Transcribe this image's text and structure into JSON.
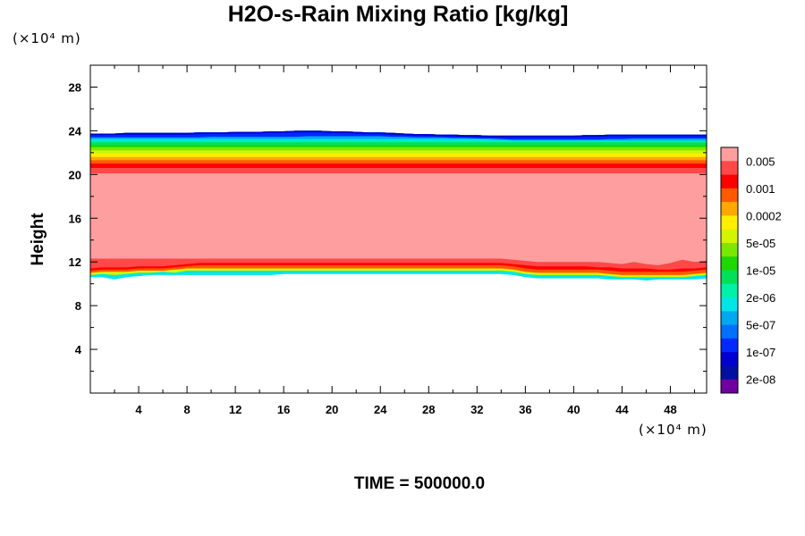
{
  "chart_data": {
    "type": "heatmap",
    "title": "H2O-s-Rain Mixing Ratio [kg/kg]",
    "ylabel": "Height",
    "x_unit": "(×10⁴ m)",
    "y_unit": "(×10⁴ m)",
    "footer": "TIME = 500000.0",
    "xlim": [
      0,
      51
    ],
    "ylim": [
      0,
      30
    ],
    "x_ticks": [
      4,
      8,
      12,
      16,
      20,
      24,
      28,
      32,
      36,
      40,
      44,
      48
    ],
    "y_ticks": [
      4,
      8,
      12,
      16,
      20,
      24,
      28
    ],
    "colorbar": {
      "labels": [
        "0.005",
        "0.001",
        "0.0002",
        "5e-05",
        "1e-05",
        "2e-06",
        "5e-07",
        "1e-07",
        "2e-08"
      ],
      "colors": [
        "#ff9e9e",
        "#ff4848",
        "#ff0000",
        "#ff5a00",
        "#ffa800",
        "#ffee00",
        "#d4f500",
        "#7ae800",
        "#1ed800",
        "#00e05a",
        "#00f0a8",
        "#00e6e6",
        "#00a8f0",
        "#0070ff",
        "#0028ff",
        "#0000d0",
        "#0010a0",
        "#7000a0"
      ]
    },
    "layers": [
      {
        "base": [
          10.6,
          10.6,
          10.4,
          10.6,
          10.7,
          10.8,
          10.8,
          10.8,
          10.8,
          10.8,
          10.8,
          10.8,
          10.8,
          10.8,
          10.8,
          10.8,
          10.9,
          10.9,
          10.9,
          10.9,
          10.9,
          10.9,
          10.9,
          10.9,
          10.9,
          10.9,
          10.9,
          10.9,
          10.9,
          10.9,
          10.9,
          10.9,
          10.9,
          10.9,
          10.9,
          10.8,
          10.6,
          10.5,
          10.5,
          10.5,
          10.5,
          10.5,
          10.5,
          10.4,
          10.4,
          10.4,
          10.3,
          10.4,
          10.4,
          10.4,
          10.4,
          10.5
        ],
        "color": "#00e6e6"
      },
      {
        "base": [
          10.8,
          10.9,
          10.8,
          10.9,
          11.0,
          11.0,
          11.1,
          11.0,
          11.2,
          11.2,
          11.2,
          11.2,
          11.2,
          11.2,
          11.2,
          11.2,
          11.2,
          11.2,
          11.2,
          11.2,
          11.2,
          11.2,
          11.2,
          11.2,
          11.2,
          11.2,
          11.2,
          11.2,
          11.2,
          11.2,
          11.2,
          11.2,
          11.2,
          11.2,
          11.2,
          11.1,
          10.9,
          10.8,
          10.8,
          10.8,
          10.8,
          10.8,
          10.8,
          10.7,
          10.6,
          10.6,
          10.6,
          10.6,
          10.6,
          10.6,
          10.7,
          10.8
        ],
        "color": "#d4f500"
      },
      {
        "base": [
          11.0,
          11.1,
          11.1,
          11.1,
          11.2,
          11.2,
          11.2,
          11.3,
          11.4,
          11.4,
          11.4,
          11.4,
          11.4,
          11.4,
          11.4,
          11.4,
          11.4,
          11.4,
          11.4,
          11.4,
          11.4,
          11.4,
          11.4,
          11.4,
          11.4,
          11.4,
          11.4,
          11.4,
          11.4,
          11.4,
          11.4,
          11.4,
          11.4,
          11.4,
          11.4,
          11.3,
          11.1,
          11.0,
          11.0,
          11.0,
          11.0,
          11.0,
          11.0,
          10.9,
          10.8,
          10.8,
          10.8,
          10.8,
          10.8,
          10.8,
          10.9,
          11.0
        ],
        "color": "#ff5a00"
      },
      {
        "base": [
          11.2,
          11.3,
          11.3,
          11.3,
          11.4,
          11.4,
          11.4,
          11.5,
          11.6,
          11.7,
          11.7,
          11.7,
          11.7,
          11.7,
          11.7,
          11.7,
          11.7,
          11.7,
          11.7,
          11.7,
          11.7,
          11.7,
          11.7,
          11.7,
          11.7,
          11.7,
          11.7,
          11.7,
          11.7,
          11.7,
          11.7,
          11.7,
          11.7,
          11.7,
          11.7,
          11.6,
          11.4,
          11.3,
          11.3,
          11.3,
          11.3,
          11.3,
          11.3,
          11.2,
          11.1,
          11.1,
          11.1,
          11.1,
          11.1,
          11.1,
          11.2,
          11.3
        ],
        "color": "#ff0000"
      },
      {
        "base": [
          11.4,
          11.5,
          11.5,
          11.5,
          11.6,
          11.6,
          11.6,
          11.7,
          11.8,
          11.9,
          11.9,
          11.9,
          11.9,
          11.9,
          11.9,
          11.9,
          11.9,
          11.9,
          11.9,
          11.9,
          11.9,
          11.9,
          11.9,
          11.9,
          11.9,
          11.9,
          11.9,
          11.9,
          11.9,
          11.9,
          11.9,
          11.9,
          11.9,
          11.9,
          11.9,
          11.8,
          11.7,
          11.6,
          11.6,
          11.6,
          11.6,
          11.6,
          11.5,
          11.5,
          11.4,
          11.4,
          11.4,
          11.3,
          11.3,
          11.4,
          11.4,
          11.5
        ],
        "color": "#ff4848"
      },
      {
        "base": [
          12.3,
          12.3,
          12.3,
          12.3,
          12.3,
          12.3,
          12.3,
          12.3,
          12.3,
          12.3,
          12.3,
          12.3,
          12.3,
          12.3,
          12.3,
          12.3,
          12.3,
          12.3,
          12.3,
          12.3,
          12.3,
          12.3,
          12.3,
          12.3,
          12.3,
          12.3,
          12.3,
          12.3,
          12.3,
          12.3,
          12.3,
          12.3,
          12.3,
          12.3,
          12.3,
          12.2,
          12.1,
          12.0,
          12.0,
          12.0,
          12.0,
          12.0,
          12.0,
          11.9,
          11.8,
          12.0,
          11.8,
          11.7,
          11.9,
          12.2,
          12.0,
          12.1
        ],
        "color": "#ff9e9e"
      },
      {
        "base": [
          20.1,
          20.1,
          20.1,
          20.1,
          20.1,
          20.1,
          20.1,
          20.1,
          20.1,
          20.1,
          20.1,
          20.1,
          20.1,
          20.1,
          20.1,
          20.1,
          20.1,
          20.1,
          20.1,
          20.1,
          20.1,
          20.1,
          20.1,
          20.1,
          20.1,
          20.1,
          20.1,
          20.1,
          20.1,
          20.1,
          20.1,
          20.1,
          20.1,
          20.1,
          20.1,
          20.1,
          20.1,
          20.1,
          20.1,
          20.1,
          20.1,
          20.1,
          20.1,
          20.1,
          20.1,
          20.1,
          20.1,
          20.1,
          20.1,
          20.1,
          20.1,
          20.1
        ],
        "color": "#ff4848"
      },
      {
        "base": [
          20.6,
          20.6,
          20.6,
          20.6,
          20.6,
          20.6,
          20.6,
          20.6,
          20.6,
          20.6,
          20.6,
          20.6,
          20.6,
          20.6,
          20.6,
          20.6,
          20.6,
          20.6,
          20.6,
          20.6,
          20.6,
          20.6,
          20.6,
          20.6,
          20.6,
          20.6,
          20.6,
          20.6,
          20.6,
          20.6,
          20.6,
          20.6,
          20.6,
          20.6,
          20.6,
          20.6,
          20.6,
          20.6,
          20.6,
          20.6,
          20.6,
          20.6,
          20.6,
          20.6,
          20.6,
          20.6,
          20.6,
          20.6,
          20.6,
          20.6,
          20.6,
          20.6
        ],
        "color": "#ff0000"
      },
      {
        "base": [
          21.0,
          21.0,
          21.0,
          21.0,
          21.0,
          21.0,
          21.0,
          21.0,
          21.0,
          21.0,
          21.0,
          21.0,
          21.0,
          21.0,
          21.0,
          21.0,
          21.0,
          21.0,
          21.0,
          21.0,
          21.0,
          21.0,
          21.0,
          21.0,
          21.0,
          21.0,
          21.0,
          21.0,
          21.0,
          21.0,
          21.0,
          21.0,
          21.0,
          21.0,
          21.0,
          21.0,
          21.0,
          21.0,
          21.0,
          21.0,
          21.0,
          21.0,
          21.0,
          21.0,
          21.0,
          21.0,
          21.0,
          21.0,
          21.0,
          21.0,
          21.0,
          21.0
        ],
        "color": "#ff5a00"
      },
      {
        "base": [
          21.3,
          21.3,
          21.3,
          21.3,
          21.3,
          21.3,
          21.3,
          21.3,
          21.3,
          21.3,
          21.3,
          21.3,
          21.3,
          21.3,
          21.3,
          21.3,
          21.3,
          21.3,
          21.3,
          21.3,
          21.3,
          21.3,
          21.3,
          21.3,
          21.3,
          21.3,
          21.3,
          21.3,
          21.3,
          21.3,
          21.3,
          21.3,
          21.3,
          21.3,
          21.3,
          21.3,
          21.3,
          21.3,
          21.3,
          21.3,
          21.3,
          21.3,
          21.3,
          21.3,
          21.3,
          21.3,
          21.3,
          21.3,
          21.3,
          21.3,
          21.3,
          21.3
        ],
        "color": "#ffa800"
      },
      {
        "base": [
          21.6,
          21.6,
          21.6,
          21.6,
          21.6,
          21.6,
          21.6,
          21.6,
          21.6,
          21.6,
          21.6,
          21.6,
          21.6,
          21.6,
          21.6,
          21.6,
          21.6,
          21.6,
          21.6,
          21.6,
          21.6,
          21.6,
          21.6,
          21.6,
          21.6,
          21.6,
          21.6,
          21.6,
          21.6,
          21.6,
          21.6,
          21.6,
          21.6,
          21.6,
          21.6,
          21.6,
          21.6,
          21.6,
          21.6,
          21.6,
          21.6,
          21.6,
          21.6,
          21.6,
          21.6,
          21.6,
          21.6,
          21.6,
          21.6,
          21.6,
          21.6,
          21.6
        ],
        "color": "#ffee00"
      },
      {
        "base": [
          21.9,
          21.9,
          21.9,
          21.9,
          21.9,
          21.9,
          21.9,
          21.9,
          21.9,
          21.9,
          21.9,
          21.9,
          21.9,
          21.9,
          21.9,
          21.9,
          21.9,
          21.9,
          21.9,
          21.9,
          21.9,
          21.9,
          21.9,
          21.9,
          21.9,
          21.9,
          21.9,
          21.9,
          21.9,
          21.9,
          21.9,
          21.9,
          21.9,
          21.9,
          21.9,
          21.9,
          21.9,
          21.9,
          21.9,
          21.9,
          21.9,
          21.9,
          21.9,
          21.9,
          21.9,
          21.9,
          21.9,
          21.9,
          21.9,
          21.9,
          21.9,
          21.9
        ],
        "color": "#d4f500"
      },
      {
        "base": [
          22.2,
          22.2,
          22.2,
          22.2,
          22.2,
          22.2,
          22.2,
          22.2,
          22.2,
          22.2,
          22.2,
          22.2,
          22.2,
          22.2,
          22.2,
          22.2,
          22.2,
          22.2,
          22.2,
          22.2,
          22.2,
          22.2,
          22.2,
          22.2,
          22.2,
          22.2,
          22.2,
          22.2,
          22.2,
          22.2,
          22.2,
          22.2,
          22.2,
          22.2,
          22.2,
          22.2,
          22.2,
          22.2,
          22.2,
          22.2,
          22.2,
          22.2,
          22.2,
          22.2,
          22.2,
          22.2,
          22.2,
          22.2,
          22.2,
          22.2,
          22.2,
          22.2
        ],
        "color": "#7ae800"
      },
      {
        "base": [
          22.5,
          22.5,
          22.5,
          22.5,
          22.5,
          22.5,
          22.5,
          22.5,
          22.5,
          22.5,
          22.5,
          22.5,
          22.5,
          22.5,
          22.5,
          22.5,
          22.5,
          22.5,
          22.5,
          22.5,
          22.5,
          22.5,
          22.5,
          22.5,
          22.5,
          22.5,
          22.5,
          22.5,
          22.5,
          22.5,
          22.5,
          22.5,
          22.5,
          22.5,
          22.5,
          22.5,
          22.5,
          22.5,
          22.5,
          22.5,
          22.5,
          22.5,
          22.5,
          22.5,
          22.5,
          22.5,
          22.5,
          22.5,
          22.5,
          22.5,
          22.5,
          22.5
        ],
        "color": "#1ed800"
      },
      {
        "base": [
          22.7,
          22.7,
          22.7,
          22.7,
          22.7,
          22.7,
          22.7,
          22.7,
          22.7,
          22.7,
          22.7,
          22.7,
          22.7,
          22.7,
          22.7,
          22.7,
          22.7,
          22.7,
          22.7,
          22.7,
          22.7,
          22.7,
          22.7,
          22.7,
          22.7,
          22.7,
          22.7,
          22.7,
          22.7,
          22.7,
          22.7,
          22.7,
          22.7,
          22.7,
          22.7,
          22.7,
          22.7,
          22.7,
          22.7,
          22.7,
          22.7,
          22.7,
          22.7,
          22.7,
          22.7,
          22.7,
          22.7,
          22.7,
          22.7,
          22.7,
          22.7,
          22.7
        ],
        "color": "#00e05a"
      },
      {
        "base": [
          22.95,
          22.95,
          22.95,
          22.95,
          22.95,
          22.95,
          22.95,
          22.95,
          22.95,
          22.95,
          22.95,
          22.95,
          22.95,
          22.95,
          22.95,
          22.95,
          22.95,
          22.95,
          22.95,
          22.95,
          22.95,
          22.95,
          22.95,
          22.95,
          22.95,
          22.95,
          22.95,
          22.95,
          22.95,
          22.95,
          22.95,
          22.95,
          22.95,
          22.95,
          22.95,
          22.95,
          22.95,
          22.95,
          22.95,
          22.95,
          22.95,
          22.95,
          22.95,
          22.95,
          22.95,
          22.95,
          22.95,
          22.95,
          22.95,
          22.95,
          22.95,
          22.95
        ],
        "color": "#00f0a8"
      },
      {
        "base": [
          23.1,
          23.1,
          23.1,
          23.1,
          23.1,
          23.1,
          23.1,
          23.1,
          23.1,
          23.1,
          23.1,
          23.1,
          23.1,
          23.1,
          23.1,
          23.1,
          23.1,
          23.1,
          23.1,
          23.1,
          23.1,
          23.1,
          23.1,
          23.1,
          23.1,
          23.1,
          23.1,
          23.1,
          23.1,
          23.1,
          23.1,
          23.1,
          23.1,
          23.1,
          23.1,
          23.1,
          23.1,
          23.1,
          23.1,
          23.1,
          23.1,
          23.1,
          23.1,
          23.1,
          23.1,
          23.1,
          23.1,
          23.1,
          23.1,
          23.1,
          23.1,
          23.1
        ],
        "color": "#00e6e6"
      },
      {
        "base": [
          23.25,
          23.25,
          23.25,
          23.25,
          23.25,
          23.25,
          23.25,
          23.25,
          23.25,
          23.25,
          23.25,
          23.25,
          23.25,
          23.25,
          23.25,
          23.25,
          23.25,
          23.25,
          23.25,
          23.25,
          23.25,
          23.25,
          23.25,
          23.25,
          23.25,
          23.25,
          23.25,
          23.25,
          23.25,
          23.25,
          23.25,
          23.25,
          23.25,
          23.2,
          23.15,
          23.1,
          23.1,
          23.1,
          23.1,
          23.1,
          23.1,
          23.1,
          23.1,
          23.1,
          23.1,
          23.1,
          23.1,
          23.1,
          23.1,
          23.1,
          23.1,
          23.1
        ],
        "color": "#00a8f0"
      },
      {
        "base": [
          23.4,
          23.4,
          23.4,
          23.4,
          23.4,
          23.4,
          23.4,
          23.4,
          23.4,
          23.4,
          23.45,
          23.45,
          23.45,
          23.45,
          23.45,
          23.45,
          23.45,
          23.45,
          23.5,
          23.5,
          23.5,
          23.5,
          23.5,
          23.5,
          23.5,
          23.45,
          23.45,
          23.4,
          23.4,
          23.4,
          23.35,
          23.35,
          23.3,
          23.3,
          23.25,
          23.2,
          23.2,
          23.2,
          23.2,
          23.2,
          23.2,
          23.2,
          23.2,
          23.25,
          23.25,
          23.3,
          23.3,
          23.3,
          23.3,
          23.3,
          23.3,
          23.3
        ],
        "color": "#0028ff"
      },
      {
        "base": [
          23.6,
          23.6,
          23.6,
          23.65,
          23.65,
          23.65,
          23.65,
          23.65,
          23.65,
          23.7,
          23.7,
          23.7,
          23.75,
          23.75,
          23.75,
          23.8,
          23.8,
          23.85,
          23.85,
          23.85,
          23.8,
          23.8,
          23.75,
          23.7,
          23.7,
          23.65,
          23.6,
          23.55,
          23.55,
          23.5,
          23.5,
          23.45,
          23.45,
          23.4,
          23.4,
          23.4,
          23.4,
          23.4,
          23.4,
          23.4,
          23.4,
          23.45,
          23.45,
          23.5,
          23.5,
          23.5,
          23.5,
          23.5,
          23.5,
          23.5,
          23.5,
          23.5
        ],
        "color": "#0000d0"
      }
    ]
  }
}
